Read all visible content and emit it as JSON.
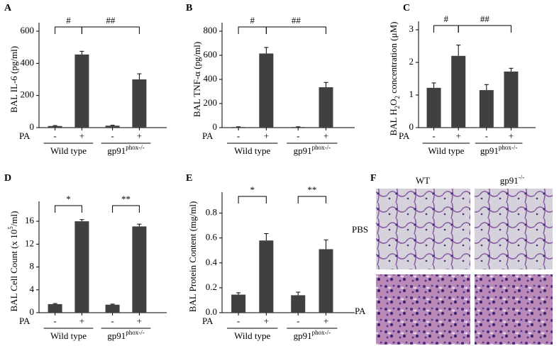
{
  "chart_data": [
    {
      "type": "bar",
      "panel": "A",
      "y_label": [
        {
          "text": "BAL IL-6 (pg/ml)"
        }
      ],
      "categories": [
        "-",
        "+",
        "-",
        "+"
      ],
      "treatment_label": "PA",
      "groups": [
        [
          {
            "text": "Wild type"
          }
        ],
        [
          {
            "text": "gp91"
          },
          {
            "text": "phox-/-",
            "shift": "super"
          }
        ]
      ],
      "values": [
        10,
        455,
        12,
        300
      ],
      "errors": [
        3,
        20,
        3,
        35
      ],
      "color": "#404040",
      "ylim": [
        0,
        600
      ],
      "yticks": [
        0,
        200,
        400,
        600
      ],
      "significance": [
        {
          "label": "#",
          "from": 0,
          "to": 1
        },
        {
          "label": "##",
          "from": 1,
          "to": 3
        }
      ]
    },
    {
      "type": "bar",
      "panel": "B",
      "y_label": [
        {
          "text": "BAL TNF-α (pg/ml)"
        }
      ],
      "categories": [
        "-",
        "+",
        "-",
        "+"
      ],
      "treatment_label": "PA",
      "groups": [
        [
          {
            "text": "Wild type"
          }
        ],
        [
          {
            "text": "gp91"
          },
          {
            "text": "phox-/-",
            "shift": "super"
          }
        ]
      ],
      "values": [
        5,
        615,
        5,
        335
      ],
      "errors": [
        2,
        50,
        2,
        40
      ],
      "color": "#404040",
      "ylim": [
        0,
        800
      ],
      "yticks": [
        0,
        200,
        400,
        600,
        800
      ],
      "significance": [
        {
          "label": "#",
          "from": 0,
          "to": 1
        },
        {
          "label": "##",
          "from": 1,
          "to": 3
        }
      ]
    },
    {
      "type": "bar",
      "panel": "C",
      "y_label": [
        {
          "text": "BAL H"
        },
        {
          "text": "2",
          "shift": "sub"
        },
        {
          "text": "O"
        },
        {
          "text": "2",
          "shift": "sub"
        },
        {
          "text": " concentration (μM)"
        }
      ],
      "categories": [
        "-",
        "+",
        "-",
        "+"
      ],
      "treatment_label": "PA",
      "groups": [
        [
          {
            "text": "Wild type"
          }
        ],
        [
          {
            "text": "gp91"
          },
          {
            "text": "phox-/-",
            "shift": "super"
          }
        ]
      ],
      "values": [
        1.22,
        2.2,
        1.15,
        1.72
      ],
      "errors": [
        0.15,
        0.33,
        0.17,
        0.1
      ],
      "color": "#404040",
      "ylim": [
        0,
        3
      ],
      "yticks": [
        0,
        1,
        2,
        3
      ],
      "significance": [
        {
          "label": "#",
          "from": 0,
          "to": 1
        },
        {
          "label": "##",
          "from": 1,
          "to": 3
        }
      ]
    },
    {
      "type": "bar",
      "panel": "D",
      "y_label": [
        {
          "text": "BAL Cell Count (x 10"
        },
        {
          "text": "5",
          "shift": "super"
        },
        {
          "text": "/ml)"
        }
      ],
      "categories": [
        "-",
        "+",
        "-",
        "+"
      ],
      "treatment_label": "PA",
      "groups": [
        [
          {
            "text": "Wild type"
          }
        ],
        [
          {
            "text": "gp91"
          },
          {
            "text": "phox-/-",
            "shift": "super"
          }
        ]
      ],
      "values": [
        1.5,
        16,
        1.4,
        15.1
      ],
      "errors": [
        0.1,
        0.3,
        0.1,
        0.4
      ],
      "color": "#404040",
      "ylim": [
        0,
        18
      ],
      "yticks": [
        0,
        4,
        8,
        12,
        16
      ],
      "significance": [
        {
          "label": "*",
          "from": 0,
          "to": 1
        },
        {
          "label": "**",
          "from": 2,
          "to": 3
        }
      ]
    },
    {
      "type": "bar",
      "panel": "E",
      "y_label": [
        {
          "text": "BAL Protein Content (mg/ml)"
        }
      ],
      "categories": [
        "-",
        "+",
        "-",
        "+"
      ],
      "treatment_label": "PA",
      "groups": [
        [
          {
            "text": "Wild type"
          }
        ],
        [
          {
            "text": "gp91"
          },
          {
            "text": "phox-/-",
            "shift": "super"
          }
        ]
      ],
      "values": [
        0.145,
        0.58,
        0.14,
        0.51
      ],
      "errors": [
        0.015,
        0.055,
        0.025,
        0.075
      ],
      "color": "#404040",
      "ylim": [
        0,
        0.9
      ],
      "yticks": [
        {
          "value": 0,
          "label": "0.0"
        },
        0.2,
        0.4,
        0.6,
        0.8
      ],
      "significance": [
        {
          "label": "*",
          "from": 0,
          "to": 1
        },
        {
          "label": "**",
          "from": 2,
          "to": 3
        }
      ]
    }
  ],
  "panel_f": {
    "letter": "F",
    "columns": [
      [
        {
          "text": "WT"
        }
      ],
      [
        {
          "text": "gp91"
        },
        {
          "text": "-/-",
          "shift": "super"
        }
      ]
    ],
    "rows": [
      "PBS",
      "PA"
    ]
  }
}
